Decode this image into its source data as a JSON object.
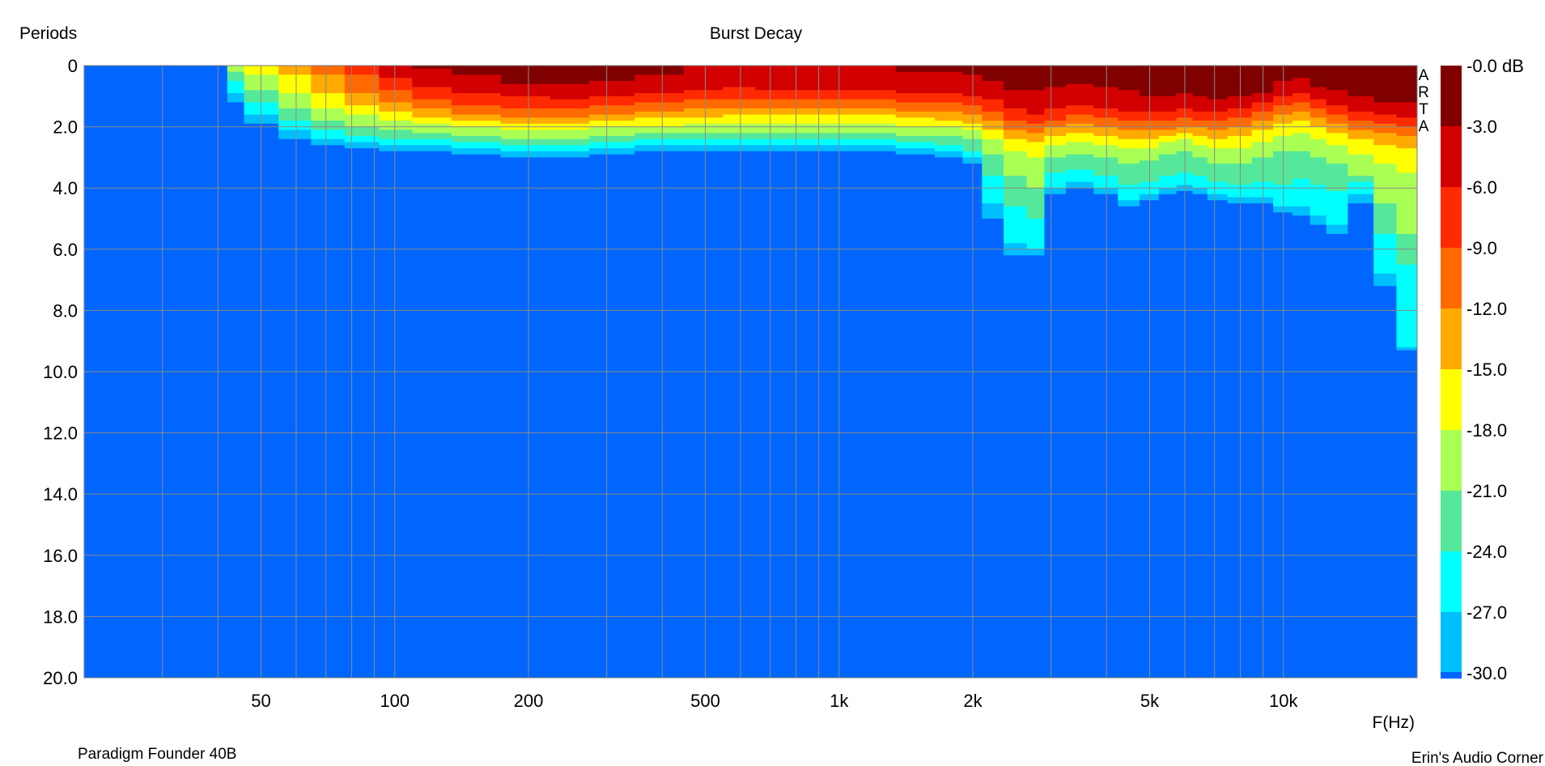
{
  "chart_data": {
    "type": "heatmap",
    "title": "Burst Decay",
    "ylabel": "Periods",
    "xlabel": "F(Hz)",
    "x_scale": "log",
    "xlim": [
      20,
      20000
    ],
    "ylim": [
      0,
      20
    ],
    "y_inverted": true,
    "grid": true,
    "x_gridlines": [
      20,
      30,
      40,
      50,
      60,
      70,
      80,
      90,
      100,
      200,
      300,
      400,
      500,
      600,
      700,
      800,
      900,
      1000,
      2000,
      3000,
      4000,
      5000,
      6000,
      7000,
      8000,
      9000,
      10000,
      20000
    ],
    "x_ticks": [
      {
        "value": 50,
        "label": "50"
      },
      {
        "value": 100,
        "label": "100"
      },
      {
        "value": 200,
        "label": "200"
      },
      {
        "value": 500,
        "label": "500"
      },
      {
        "value": 1000,
        "label": "1k"
      },
      {
        "value": 2000,
        "label": "2k"
      },
      {
        "value": 5000,
        "label": "5k"
      },
      {
        "value": 10000,
        "label": "10k"
      }
    ],
    "y_ticks": [
      {
        "value": 0,
        "label": "0"
      },
      {
        "value": 2,
        "label": "2.0"
      },
      {
        "value": 4,
        "label": "4.0"
      },
      {
        "value": 6,
        "label": "6.0"
      },
      {
        "value": 8,
        "label": "8.0"
      },
      {
        "value": 10,
        "label": "10.0"
      },
      {
        "value": 12,
        "label": "12.0"
      },
      {
        "value": 14,
        "label": "14.0"
      },
      {
        "value": 16,
        "label": "16.0"
      },
      {
        "value": 18,
        "label": "18.0"
      },
      {
        "value": 20,
        "label": "20.0"
      }
    ],
    "colorbar": {
      "unit": "dB",
      "levels": [
        {
          "label": "-0.0 dB",
          "value": 0,
          "color": "#800000"
        },
        {
          "label": "-3.0",
          "value": -3,
          "color": "#d20000"
        },
        {
          "label": "-6.0",
          "value": -6,
          "color": "#ff2a00"
        },
        {
          "label": "-9.0",
          "value": -9,
          "color": "#ff6a00"
        },
        {
          "label": "-12.0",
          "value": -12,
          "color": "#ffaa00"
        },
        {
          "label": "-15.0",
          "value": -15,
          "color": "#ffff00"
        },
        {
          "label": "-18.0",
          "value": -18,
          "color": "#aaff55"
        },
        {
          "label": "-21.0",
          "value": -21,
          "color": "#55e89a"
        },
        {
          "label": "-24.0",
          "value": -24,
          "color": "#00ffff"
        },
        {
          "label": "-27.0",
          "value": -27,
          "color": "#00bfff"
        },
        {
          "label": "-30.0",
          "value": -30,
          "color": "#0066ff"
        }
      ]
    },
    "background_color": "#0066ff",
    "decay_contours": {
      "description_levels": [
        "-3",
        "-6",
        "-9",
        "-12",
        "-15",
        "-18",
        "-21",
        "-24",
        "-27",
        "-30"
      ],
      "freq": [
        42,
        50,
        60,
        70,
        85,
        100,
        120,
        150,
        200,
        250,
        300,
        400,
        500,
        600,
        700,
        800,
        1000,
        1200,
        1500,
        1800,
        2000,
        2200,
        2500,
        2800,
        3000,
        3500,
        4000,
        4500,
        5000,
        5500,
        6000,
        6500,
        7000,
        8000,
        9000,
        10000,
        11000,
        12000,
        13000,
        15000,
        17000,
        19000
      ],
      "periods_at_level": {
        "-3": [
          0.0,
          0.0,
          0.0,
          0.0,
          0.0,
          0.0,
          0.1,
          0.3,
          0.6,
          0.6,
          0.5,
          0.3,
          0.0,
          0.0,
          0.0,
          0.0,
          0.0,
          0.0,
          0.2,
          0.2,
          0.3,
          0.5,
          0.8,
          0.8,
          0.7,
          0.6,
          0.7,
          0.8,
          1.0,
          1.0,
          0.9,
          1.0,
          1.1,
          1.0,
          0.9,
          0.5,
          0.4,
          0.7,
          0.8,
          1.0,
          1.2,
          1.2
        ],
        "-6": [
          0.0,
          0.0,
          0.0,
          0.0,
          0.0,
          0.4,
          0.7,
          0.9,
          1.0,
          1.1,
          1.0,
          0.9,
          0.8,
          0.7,
          0.8,
          0.8,
          0.8,
          0.8,
          0.9,
          0.9,
          1.0,
          1.1,
          1.4,
          1.6,
          1.4,
          1.3,
          1.4,
          1.5,
          1.5,
          1.5,
          1.4,
          1.5,
          1.5,
          1.4,
          1.2,
          1.0,
          0.9,
          1.1,
          1.3,
          1.5,
          1.6,
          1.7
        ],
        "-9": [
          0.0,
          0.0,
          0.0,
          0.0,
          0.3,
          0.8,
          1.1,
          1.3,
          1.4,
          1.4,
          1.3,
          1.2,
          1.1,
          1.1,
          1.1,
          1.1,
          1.1,
          1.1,
          1.2,
          1.2,
          1.3,
          1.5,
          1.8,
          1.9,
          1.8,
          1.6,
          1.7,
          1.8,
          1.8,
          1.8,
          1.7,
          1.8,
          1.8,
          1.7,
          1.5,
          1.3,
          1.2,
          1.4,
          1.6,
          1.8,
          1.9,
          2.0
        ],
        "-12": [
          0.0,
          0.0,
          0.0,
          0.3,
          0.9,
          1.2,
          1.4,
          1.6,
          1.7,
          1.7,
          1.6,
          1.5,
          1.4,
          1.4,
          1.4,
          1.4,
          1.4,
          1.4,
          1.5,
          1.5,
          1.6,
          1.8,
          2.1,
          2.2,
          2.0,
          1.9,
          2.0,
          2.1,
          2.1,
          2.1,
          2.0,
          2.0,
          2.1,
          2.0,
          1.8,
          1.6,
          1.5,
          1.7,
          1.9,
          2.1,
          2.2,
          2.3
        ],
        "-15": [
          0.0,
          0.0,
          0.3,
          0.9,
          1.3,
          1.5,
          1.7,
          1.8,
          1.9,
          1.9,
          1.8,
          1.7,
          1.7,
          1.6,
          1.6,
          1.6,
          1.6,
          1.6,
          1.7,
          1.8,
          1.9,
          2.1,
          2.4,
          2.5,
          2.3,
          2.2,
          2.3,
          2.4,
          2.4,
          2.3,
          2.2,
          2.3,
          2.4,
          2.3,
          2.1,
          1.9,
          1.8,
          2.0,
          2.2,
          2.4,
          2.6,
          2.7
        ],
        "-18": [
          0.0,
          0.3,
          0.9,
          1.4,
          1.6,
          1.8,
          1.9,
          2.0,
          2.1,
          2.1,
          2.0,
          2.0,
          1.9,
          1.9,
          1.9,
          1.9,
          1.9,
          1.9,
          2.0,
          2.0,
          2.1,
          2.4,
          2.8,
          3.0,
          2.6,
          2.5,
          2.6,
          2.7,
          2.7,
          2.5,
          2.4,
          2.6,
          2.7,
          2.7,
          2.5,
          2.3,
          2.2,
          2.4,
          2.6,
          2.9,
          3.2,
          3.5
        ],
        "-21": [
          0.2,
          0.8,
          1.4,
          1.8,
          2.0,
          2.1,
          2.2,
          2.3,
          2.4,
          2.4,
          2.3,
          2.2,
          2.2,
          2.2,
          2.2,
          2.2,
          2.2,
          2.2,
          2.3,
          2.3,
          2.4,
          2.9,
          3.6,
          4.0,
          3.0,
          2.9,
          3.0,
          3.2,
          3.1,
          2.9,
          2.8,
          3.0,
          3.2,
          3.2,
          3.0,
          2.8,
          2.8,
          3.0,
          3.2,
          3.6,
          4.5,
          5.5
        ],
        "-24": [
          0.5,
          1.2,
          1.8,
          2.1,
          2.3,
          2.4,
          2.4,
          2.5,
          2.6,
          2.6,
          2.5,
          2.4,
          2.4,
          2.4,
          2.4,
          2.4,
          2.4,
          2.4,
          2.5,
          2.6,
          2.8,
          3.6,
          4.6,
          5.0,
          3.5,
          3.4,
          3.6,
          3.9,
          3.8,
          3.6,
          3.5,
          3.6,
          3.8,
          3.9,
          3.8,
          3.9,
          3.7,
          3.9,
          4.1,
          3.8,
          5.5,
          6.5
        ],
        "-27": [
          0.9,
          1.6,
          2.1,
          2.4,
          2.5,
          2.6,
          2.6,
          2.7,
          2.8,
          2.8,
          2.7,
          2.6,
          2.6,
          2.6,
          2.6,
          2.6,
          2.6,
          2.6,
          2.7,
          2.8,
          3.0,
          4.5,
          5.8,
          6.0,
          4.0,
          3.8,
          4.0,
          4.4,
          4.2,
          4.0,
          3.9,
          4.0,
          4.2,
          4.3,
          4.3,
          4.6,
          4.6,
          4.9,
          5.2,
          4.2,
          6.8,
          9.2
        ],
        "-30": [
          1.2,
          1.9,
          2.4,
          2.6,
          2.7,
          2.8,
          2.8,
          2.9,
          3.0,
          3.0,
          2.9,
          2.8,
          2.8,
          2.8,
          2.8,
          2.8,
          2.8,
          2.8,
          2.9,
          3.0,
          3.2,
          5.0,
          6.2,
          6.2,
          4.2,
          4.0,
          4.2,
          4.6,
          4.4,
          4.2,
          4.1,
          4.2,
          4.4,
          4.5,
          4.5,
          4.8,
          4.9,
          5.2,
          5.5,
          4.5,
          7.2,
          9.3
        ]
      }
    }
  },
  "labels": {
    "title": "Burst Decay",
    "ylabel": "Periods",
    "xlabel": "F(Hz)",
    "arta": "A R T A",
    "arta_letters": [
      "A",
      "R",
      "T",
      "A"
    ],
    "product": "Paradigm Founder 40B",
    "credit": "Erin's Audio Corner"
  }
}
